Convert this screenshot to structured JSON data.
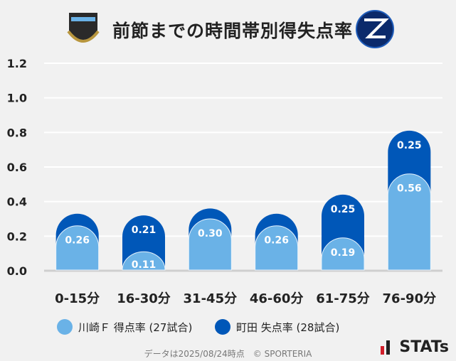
{
  "title": "前節までの時間帯別得失点率",
  "logos": {
    "home": "KAWASAKI FRONTALE",
    "away": "FC MACHIDA ZELVIA"
  },
  "colors": {
    "home": "#6ab2e7",
    "away": "#0057b8"
  },
  "chart_data": {
    "type": "bar",
    "stacked": "overlap",
    "title": "前節までの時間帯別得失点率",
    "categories": [
      "0-15分",
      "16-30分",
      "31-45分",
      "46-60分",
      "61-75分",
      "76-90分"
    ],
    "series": [
      {
        "name": "川崎Ｆ 得点率 (27試合)",
        "values": [
          0.26,
          0.11,
          0.3,
          0.26,
          0.19,
          0.56
        ],
        "labels": [
          "0.26",
          "0.11",
          "0.30",
          "0.26",
          "0.19",
          "0.56"
        ]
      },
      {
        "name": "町田 失点率 (28試合)",
        "values": [
          0.07,
          0.21,
          0.06,
          0.07,
          0.25,
          0.25
        ],
        "labels": [
          "",
          "0.21",
          "",
          "",
          "0.25",
          "0.25"
        ]
      }
    ],
    "ylim": [
      0,
      1.2
    ],
    "yticks": [
      "0.0",
      "0.2",
      "0.4",
      "0.6",
      "0.8",
      "1.0",
      "1.2"
    ],
    "grid": true,
    "legend": "bottom"
  },
  "footer": "データは2025/08/24時点　© SPORTERIA",
  "brand": "STATs"
}
